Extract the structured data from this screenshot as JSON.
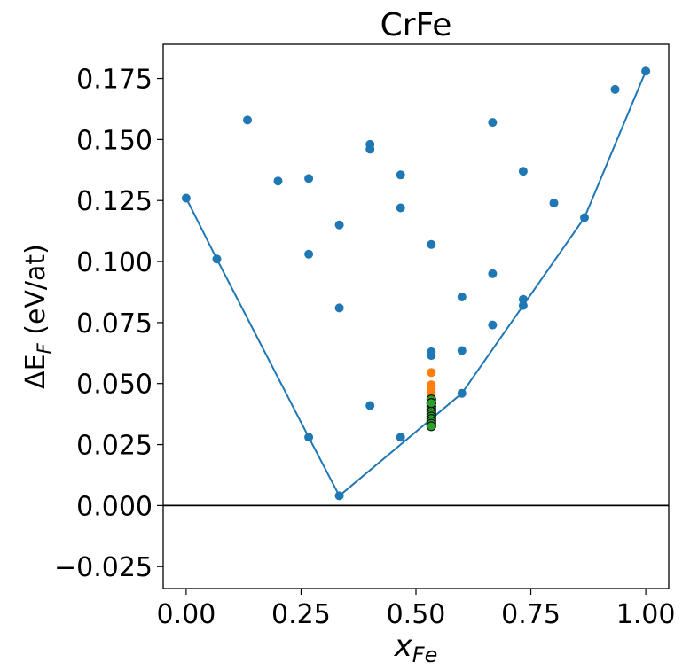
{
  "chart_data": {
    "type": "scatter",
    "title": "CrFe",
    "xlabel_main": "x",
    "xlabel_sub": "Fe",
    "ylabel_prefix": "ΔE",
    "ylabel_sub": "F",
    "ylabel_suffix": " (eV/at)",
    "xlim": [
      -0.05,
      1.05
    ],
    "ylim": [
      -0.034,
      0.189
    ],
    "xticks": [
      0.0,
      0.25,
      0.5,
      0.75,
      1.0
    ],
    "xtick_labels": [
      "0.00",
      "0.25",
      "0.50",
      "0.75",
      "1.00"
    ],
    "yticks": [
      -0.025,
      0.0,
      0.025,
      0.05,
      0.075,
      0.1,
      0.125,
      0.15,
      0.175
    ],
    "ytick_labels": [
      "−0.025",
      "0.000",
      "0.025",
      "0.050",
      "0.075",
      "0.100",
      "0.125",
      "0.150",
      "0.175"
    ],
    "reference_line_y": 0.0,
    "colors": {
      "blue": "#1f77b4",
      "orange": "#ff7f0e",
      "green": "#2ca02c",
      "edge": "#000000"
    },
    "series": [
      {
        "color": "#1f77b4",
        "style": "scatter",
        "x": [
          0.0,
          0.0667,
          0.1333,
          0.2,
          0.2667,
          0.2667,
          0.2667,
          0.3333,
          0.3333,
          0.3333,
          0.4,
          0.4,
          0.4,
          0.4667,
          0.4667,
          0.4667,
          0.5333,
          0.5333,
          0.5333,
          0.6,
          0.6,
          0.6,
          0.6667,
          0.6667,
          0.6667,
          0.7333,
          0.7333,
          0.7333,
          0.8,
          0.8667,
          0.9333,
          1.0
        ],
        "y": [
          0.126,
          0.101,
          0.158,
          0.133,
          0.134,
          0.103,
          0.028,
          0.115,
          0.081,
          0.004,
          0.148,
          0.146,
          0.041,
          0.1355,
          0.122,
          0.028,
          0.107,
          0.063,
          0.0615,
          0.0855,
          0.0635,
          0.046,
          0.157,
          0.095,
          0.074,
          0.137,
          0.0845,
          0.082,
          0.124,
          0.118,
          0.1705,
          0.178
        ]
      },
      {
        "color": "#ff7f0e",
        "style": "scatter",
        "x": [
          0.5333,
          0.5333,
          0.5333,
          0.5333,
          0.5333,
          0.5333
        ],
        "y": [
          0.0545,
          0.0495,
          0.048,
          0.0465,
          0.0455,
          0.044
        ]
      },
      {
        "color": "#2ca02c",
        "style": "scatter-edged",
        "x": [
          0.5333,
          0.5333,
          0.5333,
          0.5333,
          0.5333,
          0.5333,
          0.5333,
          0.5333,
          0.5333,
          0.5333,
          0.5333,
          0.5333
        ],
        "y": [
          0.0435,
          0.042,
          0.0405,
          0.0395,
          0.0385,
          0.0375,
          0.0365,
          0.0355,
          0.0345,
          0.0335,
          0.0325,
          0.042
        ]
      },
      {
        "color": "#1f77b4",
        "style": "line",
        "x": [
          0.0,
          0.0667,
          0.2667,
          0.3333,
          0.6,
          0.7333,
          0.8667,
          1.0
        ],
        "y": [
          0.126,
          0.101,
          0.028,
          0.004,
          0.046,
          0.082,
          0.118,
          0.178
        ]
      }
    ]
  }
}
